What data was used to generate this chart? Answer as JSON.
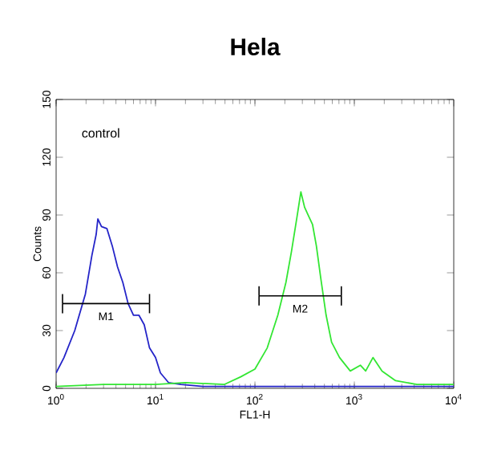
{
  "chart_data": {
    "type": "line",
    "title": "Hela",
    "xlabel": "FL1-H",
    "ylabel": "Counts",
    "log": "x",
    "xlim": [
      1,
      10000
    ],
    "ylim": [
      0,
      150
    ],
    "xticks": [
      {
        "value": 1,
        "label": "10$^{0}$"
      },
      {
        "value": 10,
        "label": "10$^{1}$"
      },
      {
        "value": 100,
        "label": "10$^{2}$"
      },
      {
        "value": 1000,
        "label": "10$^{3}$"
      },
      {
        "value": 10000,
        "label": "10$^{4}$"
      }
    ],
    "yticks": [
      0,
      30,
      60,
      90,
      120,
      150
    ],
    "annotations": [
      "control"
    ],
    "series": [
      {
        "color": "#2424c8",
        "x": [
          1,
          1.2,
          1.54,
          1.97,
          2.29,
          2.53,
          2.63,
          2.86,
          3.24,
          3.67,
          4.15,
          4.69,
          5.3,
          6.0,
          6.8,
          7.7,
          8.7,
          10,
          11.2,
          13.5,
          18,
          30,
          100,
          1000,
          10000
        ],
        "values": [
          8,
          16,
          30,
          49,
          69,
          80,
          88,
          84,
          83,
          74,
          63,
          55,
          44,
          38,
          38,
          33,
          21,
          16,
          8,
          3,
          2,
          1,
          1,
          1,
          1
        ]
      },
      {
        "color": "#33e633",
        "x": [
          1,
          3,
          10,
          20,
          49,
          72,
          100,
          133,
          170,
          205,
          233,
          263,
          290,
          316,
          350,
          380,
          415,
          460,
          520,
          590,
          710,
          910,
          1150,
          1300,
          1540,
          1900,
          2600,
          4260,
          10000
        ],
        "values": [
          1,
          2,
          2,
          3,
          2,
          6,
          10,
          21,
          38,
          55,
          71,
          88,
          102,
          94,
          89,
          85,
          74,
          57,
          38,
          24,
          16,
          9,
          12,
          9,
          16,
          9,
          4,
          2,
          2
        ]
      },
      {
        "name": "M1",
        "color": "#000000",
        "x": [
          1.16,
          8.7
        ],
        "values": [
          44,
          44
        ],
        "errors": [
          5,
          5
        ]
      },
      {
        "name": "M2",
        "color": "#000000",
        "x": [
          110,
          740
        ],
        "values": [
          48,
          48
        ],
        "errors": [
          5,
          5
        ]
      }
    ]
  }
}
